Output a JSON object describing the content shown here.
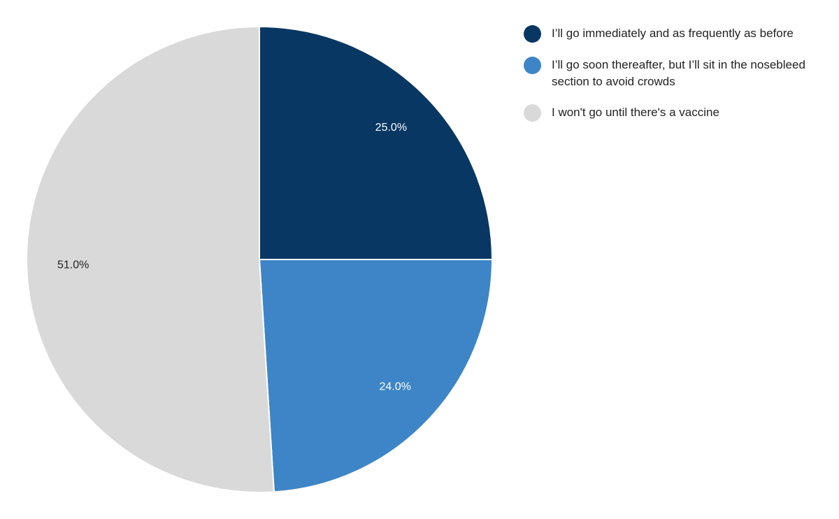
{
  "chart_data": {
    "type": "pie",
    "categories": [
      "I’ll go immediately and as frequently as before",
      "I’ll go soon thereafter, but I’ll sit in the nosebleed section to avoid crowds",
      "I won't go until there's a vaccine"
    ],
    "values": [
      25,
      24,
      51
    ],
    "value_labels": [
      "25.0%",
      "24.0%",
      "51.0%"
    ],
    "colors": [
      "#083763",
      "#3d85c6",
      "#d9d9d9"
    ]
  }
}
